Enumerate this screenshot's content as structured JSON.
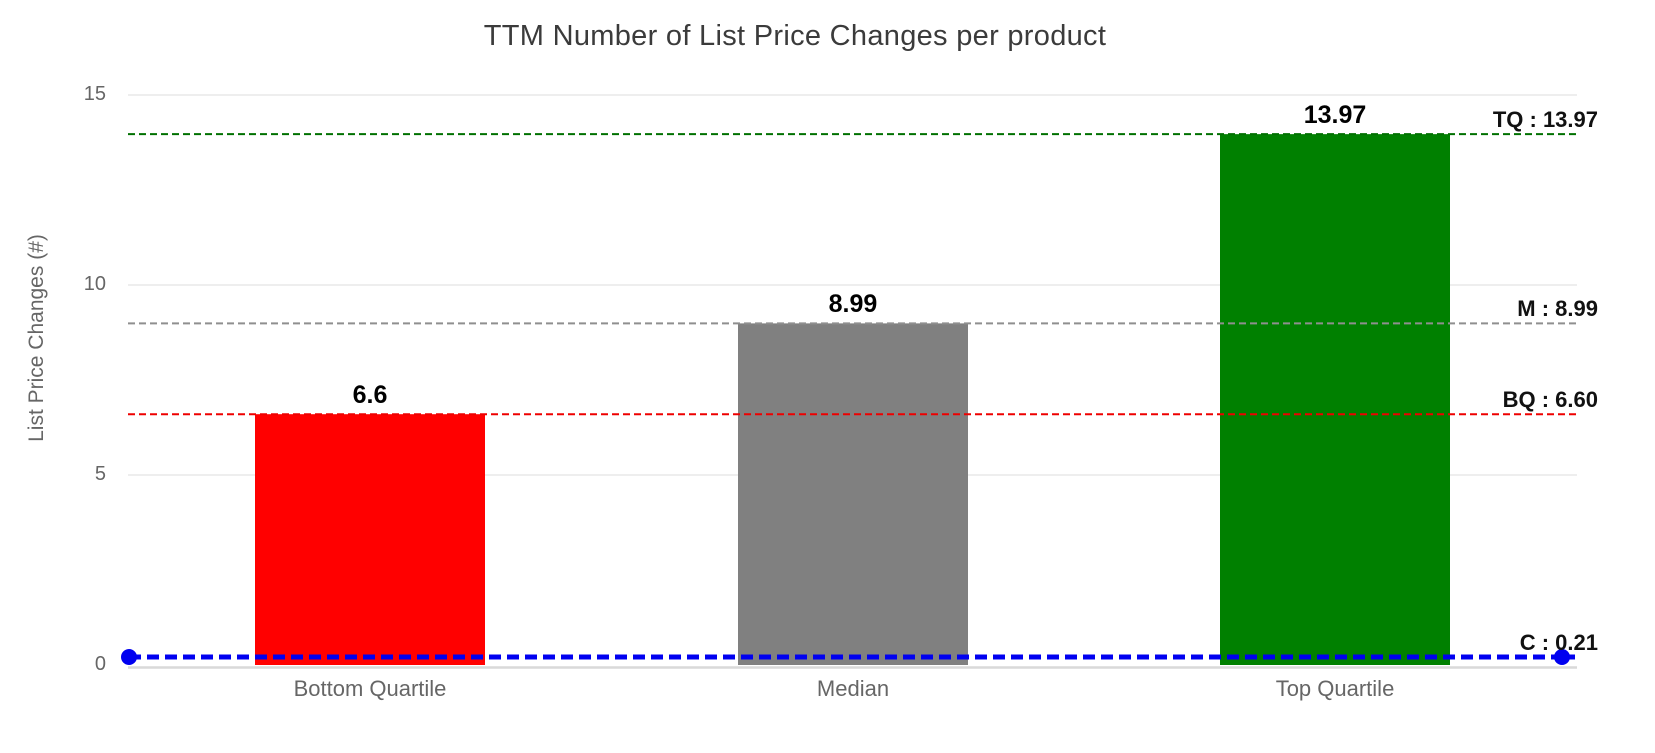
{
  "chart_data": {
    "type": "bar",
    "title": "TTM Number of List Price Changes per product",
    "xlabel": "",
    "ylabel": "List Price Changes (#)",
    "categories": [
      "Bottom Quartile",
      "Median",
      "Top Quartile"
    ],
    "values": [
      6.6,
      8.99,
      13.97
    ],
    "value_labels": [
      "6.6",
      "8.99",
      "13.97"
    ],
    "bar_colors": [
      "#ff0000",
      "#808080",
      "#008000"
    ],
    "ylim": [
      0,
      15
    ],
    "yticks": [
      0,
      5,
      10,
      15
    ],
    "grid": true,
    "legend": "none",
    "reference_lines": [
      {
        "id": "tq",
        "label": "TQ : 13.97",
        "value": 13.97,
        "color": "#007000",
        "width": 2,
        "dash": "7 4",
        "endpoint_markers": false
      },
      {
        "id": "m",
        "label": "M : 8.99",
        "value": 8.99,
        "color": "#8f8f8f",
        "width": 2,
        "dash": "7 4",
        "endpoint_markers": false
      },
      {
        "id": "bq",
        "label": "BQ : 6.60",
        "value": 6.6,
        "color": "#ee0000",
        "width": 2,
        "dash": "7 4",
        "endpoint_markers": false
      },
      {
        "id": "c",
        "label": "C : 0.21",
        "value": 0.21,
        "color": "#0000f0",
        "width": 5,
        "dash": "12 6",
        "endpoint_markers": true
      }
    ],
    "colors": {
      "title": "#3b3b3b",
      "axis_text": "#666666",
      "gridline": "#e8e8e8",
      "baseline": "#d9d9d9",
      "value_label": "#000000",
      "ref_label": "#111111"
    }
  }
}
